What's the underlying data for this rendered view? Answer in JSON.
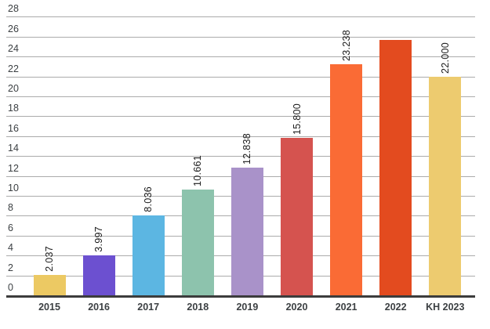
{
  "chart_data": {
    "type": "bar",
    "title": "",
    "xlabel": "",
    "ylabel": "",
    "categories": [
      "2015",
      "2016",
      "2017",
      "2018",
      "2019",
      "2020",
      "2021",
      "2022",
      "KH 2023"
    ],
    "values": [
      2.037,
      3.997,
      8.036,
      10.661,
      12.838,
      15.8,
      23.238,
      25.7,
      22.0
    ],
    "bar_labels": [
      "2.037",
      "3.997",
      "8.036",
      "10.661",
      "12.838",
      "15.800",
      "23.238",
      "",
      "22.000"
    ],
    "bar_colors": [
      "#ECC963",
      "#6C50D0",
      "#5CB6E2",
      "#8DC3AD",
      "#A992C9",
      "#D5534F",
      "#FA6B35",
      "#E34B1F",
      "#EDCB6F"
    ],
    "ylim": [
      0,
      28
    ],
    "y_ticks": [
      0,
      2,
      4,
      6,
      8,
      10,
      12,
      14,
      16,
      18,
      20,
      22,
      24,
      26,
      28
    ],
    "grid": true,
    "legend": "none",
    "value_label_rotation": -90,
    "grid_color": "#ABABAB",
    "baseline_color": "#3C3C3C",
    "axis_text_color": "#3C4043",
    "value_text_color": "#1A1A1A",
    "background_color": "#FFFFFF"
  }
}
